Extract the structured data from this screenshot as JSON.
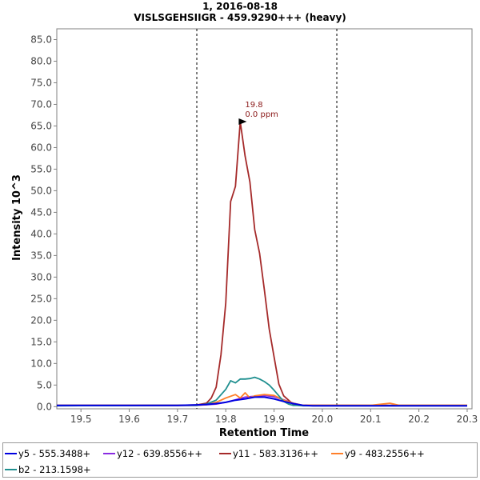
{
  "chart_data": {
    "type": "line",
    "title": "1, 2016-08-18",
    "subtitle": "VISLSGEHSIIGR - 459.9290+++ (heavy)",
    "xlabel": "Retention Time",
    "ylabel": "Intensity 10^3",
    "xlim": [
      19.45,
      20.31
    ],
    "ylim": [
      -0.5,
      87.5
    ],
    "xticks": [
      "19.5",
      "19.6",
      "19.7",
      "19.8",
      "19.9",
      "20.0",
      "20.1",
      "20.2",
      "20.3"
    ],
    "yticks": [
      "0.0",
      "5.0",
      "10.0",
      "15.0",
      "20.0",
      "25.0",
      "30.0",
      "35.0",
      "40.0",
      "45.0",
      "50.0",
      "55.0",
      "60.0",
      "65.0",
      "70.0",
      "75.0",
      "80.0",
      "85.0"
    ],
    "integration_bounds": [
      19.74,
      20.03
    ],
    "peak_annotation": {
      "x": 19.85,
      "y": 66.0,
      "rt_label": "19.8",
      "ppm_label": "0.0 ppm"
    },
    "series": [
      {
        "name": "y5 - 555.3488+",
        "color": "#0000e0",
        "x": [
          19.45,
          19.7,
          19.74,
          19.76,
          19.78,
          19.8,
          19.82,
          19.84,
          19.86,
          19.88,
          19.9,
          19.92,
          19.94,
          19.96,
          19.98,
          20.0,
          20.3
        ],
        "y": [
          0.3,
          0.3,
          0.4,
          0.5,
          0.7,
          1.0,
          1.5,
          1.8,
          2.2,
          2.2,
          1.8,
          1.2,
          0.7,
          0.3,
          0.2,
          0.2,
          0.2
        ]
      },
      {
        "name": "y12 - 639.8556++",
        "color": "#8a2be2",
        "x": [
          19.45,
          19.74,
          19.78,
          19.8,
          19.82,
          19.84,
          19.86,
          19.88,
          19.9,
          19.92,
          19.94,
          19.96,
          20.3
        ],
        "y": [
          0.2,
          0.3,
          0.6,
          1.0,
          1.6,
          2.2,
          2.4,
          2.6,
          2.3,
          1.6,
          0.8,
          0.3,
          0.2
        ]
      },
      {
        "name": "y11 - 583.3136++",
        "color": "#a52a2a",
        "x": [
          19.45,
          19.7,
          19.74,
          19.76,
          19.77,
          19.78,
          19.79,
          19.8,
          19.81,
          19.82,
          19.83,
          19.84,
          19.85,
          19.86,
          19.87,
          19.88,
          19.89,
          19.9,
          19.91,
          19.92,
          19.93,
          19.94,
          19.95,
          19.96,
          19.97,
          19.98,
          19.99,
          20.0,
          20.01,
          20.02,
          20.03,
          20.3
        ],
        "y": [
          0.3,
          0.3,
          0.4,
          0.8,
          2.0,
          4.5,
          12.0,
          24.0,
          47.5,
          51.0,
          66.0,
          58.0,
          52.0,
          41.0,
          35.5,
          27.0,
          18.0,
          11.5,
          5.2,
          2.5,
          1.5,
          0.5,
          0.3,
          0.3,
          0.3,
          0.3,
          0.3,
          0.3,
          0.3,
          0.3,
          0.3,
          0.3
        ]
      },
      {
        "name": "y9 - 483.2556++",
        "color": "#ff7f2a",
        "x": [
          19.45,
          19.74,
          19.76,
          19.78,
          19.8,
          19.82,
          19.83,
          19.84,
          19.85,
          19.86,
          19.88,
          19.9,
          19.92,
          19.94,
          19.96,
          20.1,
          20.14,
          20.16,
          20.3
        ],
        "y": [
          0.3,
          0.3,
          0.5,
          1.0,
          2.0,
          2.8,
          2.0,
          3.2,
          2.0,
          2.5,
          2.8,
          2.6,
          1.5,
          0.8,
          0.3,
          0.3,
          0.8,
          0.3,
          0.3
        ]
      },
      {
        "name": "b2 - 213.1598+",
        "color": "#1f8f8f",
        "x": [
          19.45,
          19.74,
          19.76,
          19.78,
          19.8,
          19.81,
          19.82,
          19.83,
          19.84,
          19.85,
          19.86,
          19.87,
          19.88,
          19.89,
          19.9,
          19.91,
          19.92,
          19.93,
          19.94,
          19.95,
          19.96,
          20.3
        ],
        "y": [
          0.2,
          0.3,
          0.6,
          1.5,
          4.0,
          6.0,
          5.5,
          6.4,
          6.4,
          6.5,
          6.8,
          6.4,
          5.8,
          5.0,
          3.8,
          2.5,
          1.2,
          0.6,
          0.3,
          0.3,
          0.2,
          0.2
        ]
      }
    ]
  }
}
